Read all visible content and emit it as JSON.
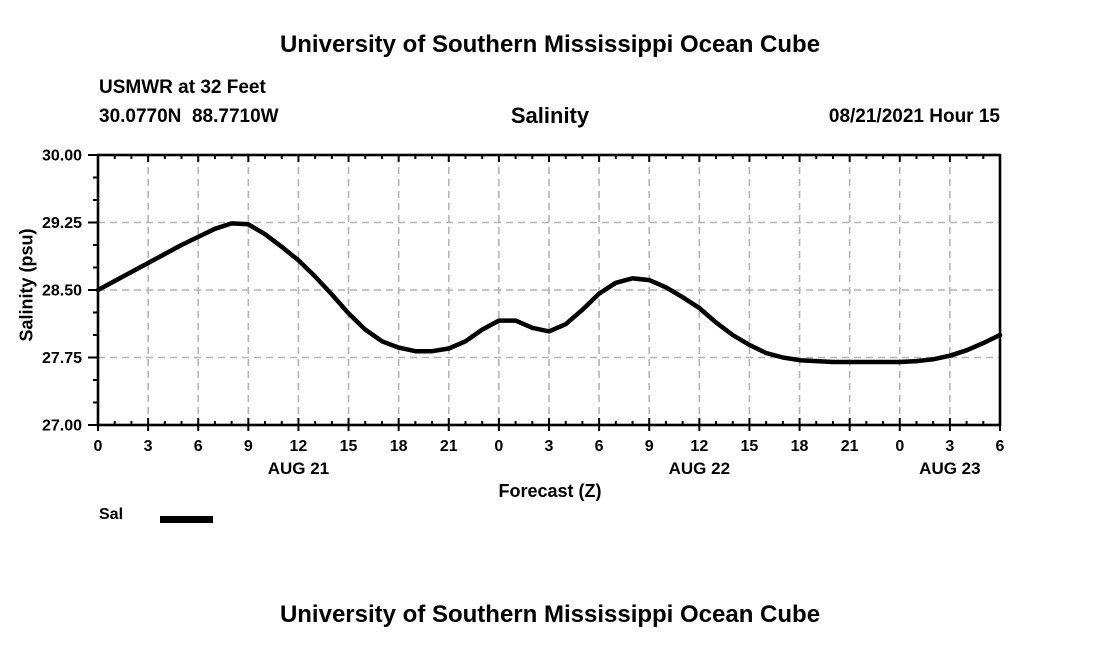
{
  "page": {
    "top_title": "University of Southern Mississippi Ocean Cube",
    "bottom_title": "University of Southern Mississippi Ocean Cube"
  },
  "header": {
    "station_name": "USMWR at 32 Feet",
    "station_coordinates": "30.0770N  88.7710W",
    "run_timestamp": "08/21/2021 Hour 15"
  },
  "legend": {
    "label": "Sal",
    "swatch_color": "#000000"
  },
  "chart_data": {
    "type": "line",
    "title": "Salinity",
    "xlabel": "Forecast (Z)",
    "ylabel": "Salinity (psu)",
    "xlim": [
      0,
      54
    ],
    "ylim": [
      27.0,
      30.0
    ],
    "grid": true,
    "gridline_color": "#b4b4b4",
    "axis_color": "#000000",
    "x_major_ticks": [
      0,
      3,
      6,
      9,
      12,
      15,
      18,
      21,
      24,
      27,
      30,
      33,
      36,
      39,
      42,
      45,
      48,
      51,
      54
    ],
    "x_tick_labels": [
      "0",
      "3",
      "6",
      "9",
      "12",
      "15",
      "18",
      "21",
      "0",
      "3",
      "6",
      "9",
      "12",
      "15",
      "18",
      "21",
      "0",
      "3",
      "6"
    ],
    "x_minor_step": 1,
    "y_major_ticks": [
      27.0,
      27.75,
      28.5,
      29.25,
      30.0
    ],
    "y_tick_labels": [
      "27.00",
      "27.75",
      "28.50",
      "29.25",
      "30.00"
    ],
    "y_minor_step": 0.25,
    "date_labels": [
      {
        "label": "AUG 21",
        "hour": 12
      },
      {
        "label": "AUG 22",
        "hour": 36
      },
      {
        "label": "AUG 23",
        "hour": 51
      }
    ],
    "series": [
      {
        "name": "Sal",
        "color": "#000000",
        "x_hours": [
          0,
          1,
          2,
          3,
          4,
          5,
          6,
          7,
          8,
          9,
          10,
          11,
          12,
          13,
          14,
          15,
          16,
          17,
          18,
          19,
          20,
          21,
          22,
          23,
          24,
          25,
          26,
          27,
          28,
          29,
          30,
          31,
          32,
          33,
          34,
          35,
          36,
          37,
          38,
          39,
          40,
          41,
          42,
          43,
          44,
          45,
          46,
          47,
          48,
          49,
          50,
          51,
          52,
          53,
          54
        ],
        "values": [
          28.5,
          28.6,
          28.7,
          28.8,
          28.9,
          29.0,
          29.09,
          29.18,
          29.24,
          29.23,
          29.12,
          28.98,
          28.83,
          28.65,
          28.45,
          28.24,
          28.06,
          27.93,
          27.86,
          27.82,
          27.82,
          27.85,
          27.93,
          28.06,
          28.16,
          28.16,
          28.08,
          28.04,
          28.12,
          28.28,
          28.46,
          28.58,
          28.63,
          28.61,
          28.53,
          28.42,
          28.3,
          28.14,
          28.0,
          27.89,
          27.8,
          27.75,
          27.72,
          27.71,
          27.7,
          27.7,
          27.7,
          27.7,
          27.7,
          27.71,
          27.73,
          27.77,
          27.83,
          27.91,
          28.0
        ]
      }
    ],
    "legend_position": "bottom-left"
  }
}
